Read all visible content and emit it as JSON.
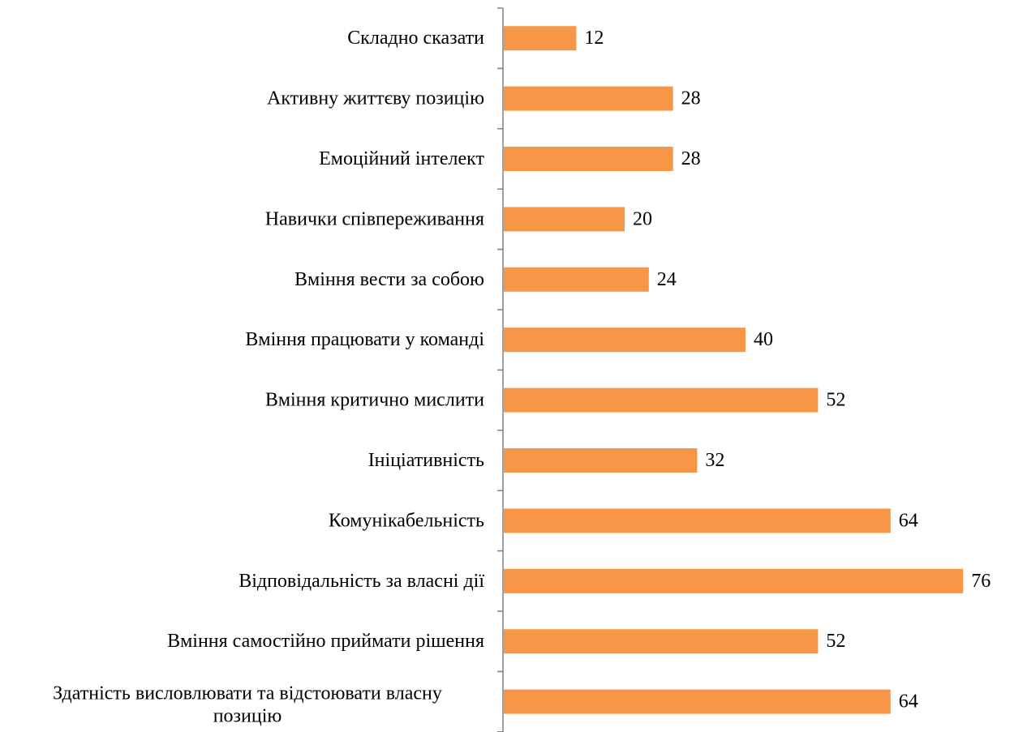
{
  "chart_data": {
    "type": "bar",
    "orientation": "horizontal",
    "categories": [
      "Складно сказати",
      "Активну життєву позицію",
      "Емоційний інтелект",
      "Навички співпереживання",
      "Вміння вести за собою ",
      "Вміння працювати у команді",
      "Вміння критично мислити",
      "Ініціативність",
      "Комунікабельність",
      "Відповідальність за власні дії ",
      "Вміння самостійно приймати рішення",
      "Здатність висловлювати та відстоювати власну позицію"
    ],
    "category_lines": [
      [
        "Складно сказати"
      ],
      [
        "Активну життєву позицію"
      ],
      [
        "Емоційний інтелект"
      ],
      [
        "Навички співпереживання"
      ],
      [
        "Вміння вести за собою "
      ],
      [
        "Вміння працювати у команді"
      ],
      [
        "Вміння критично мислити"
      ],
      [
        "Ініціативність"
      ],
      [
        "Комунікабельність"
      ],
      [
        "Відповідальність за власні дії "
      ],
      [
        "Вміння самостійно приймати рішення"
      ],
      [
        "Здатність висловлювати та відстоювати власну",
        "позицію"
      ]
    ],
    "values": [
      12,
      28,
      28,
      20,
      24,
      40,
      52,
      32,
      64,
      76,
      52,
      64
    ],
    "xlim": [
      0,
      76
    ],
    "bar_color": "#F79646",
    "axis_color": "#808080",
    "data_labels": true,
    "grid": false,
    "legend": "none"
  }
}
